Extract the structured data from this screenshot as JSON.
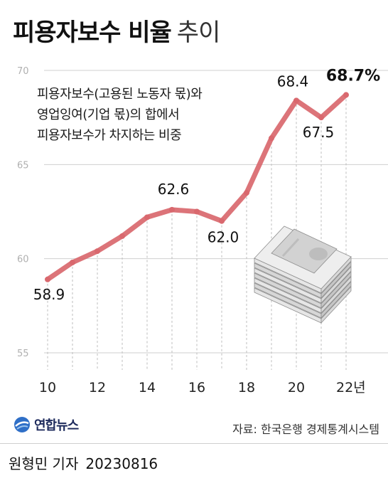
{
  "header": {
    "title_main": "피용자보수 비율",
    "title_sub": "추이"
  },
  "note": {
    "lines": [
      "피용자보수(고용된 노동자 몫)와",
      "영업잉여(기업 몫)의 합에서",
      "피용자보수가 차지하는 비중"
    ]
  },
  "chart_data": {
    "type": "line",
    "x": [
      10,
      11,
      12,
      13,
      14,
      15,
      16,
      17,
      18,
      19,
      20,
      21,
      22
    ],
    "x_tick_labels": [
      "10",
      "12",
      "14",
      "16",
      "18",
      "20",
      "22년"
    ],
    "x_tick_values": [
      10,
      12,
      14,
      16,
      18,
      20,
      22
    ],
    "series": [
      {
        "values": [
          58.9,
          59.8,
          60.4,
          61.2,
          62.2,
          62.6,
          62.5,
          62.0,
          63.5,
          66.4,
          68.4,
          67.5,
          68.7
        ]
      }
    ],
    "data_labels": [
      {
        "x": 10,
        "text": "58.9"
      },
      {
        "x": 15,
        "text": "62.6"
      },
      {
        "x": 17,
        "text": "62.0"
      },
      {
        "x": 20,
        "text": "68.4"
      },
      {
        "x": 21,
        "text": "67.5"
      },
      {
        "x": 22,
        "text": "68.7%"
      }
    ],
    "y_ticks": [
      55,
      60,
      65,
      70
    ],
    "y_tick_labels": [
      "55",
      "60",
      "65",
      "70"
    ],
    "ylim": [
      55,
      70
    ],
    "xlim": [
      10,
      22
    ],
    "grid": "horizontal",
    "colors": {
      "line": "#d9686e",
      "grid": "#cfcfcf",
      "dropline": "#bdbdbd"
    },
    "illustration": "stack-of-banknotes"
  },
  "footer": {
    "logo_text": "연합뉴스",
    "source": "자료: 한국은행 경제통계시스템",
    "byline": "원형민 기자",
    "date": "20230816"
  }
}
